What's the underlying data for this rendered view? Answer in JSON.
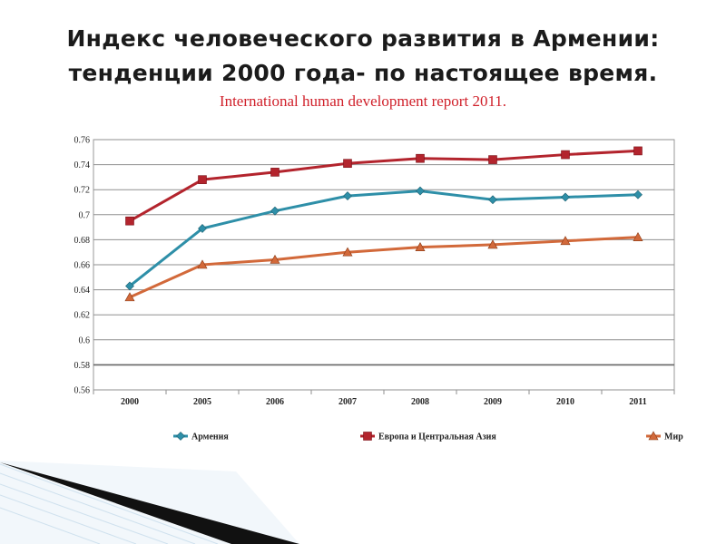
{
  "slide": {
    "title_line1": "Индекс человеческого развития в Армении:",
    "title_line2": "тенденции  2000 года- по настоящее время.",
    "subtitle": "International human development report 2011."
  },
  "chart_data": {
    "type": "line",
    "categories": [
      "2000",
      "2005",
      "2006",
      "2007",
      "2008",
      "2009",
      "2010",
      "2011"
    ],
    "ylim": [
      0.56,
      0.76
    ],
    "yticks": [
      "0.56",
      "0.58",
      "0.6",
      "0.62",
      "0.64",
      "0.66",
      "0.68",
      "0.7",
      "0.72",
      "0.74",
      "0.76"
    ],
    "grid": true,
    "legend_position": "bottom",
    "series": [
      {
        "name": "Армения",
        "color": "#2e8fa8",
        "marker": "diamond",
        "values": [
          0.643,
          0.689,
          0.703,
          0.715,
          0.719,
          0.712,
          0.714,
          0.716
        ]
      },
      {
        "name": "Европа и Центральная Азия",
        "color": "#b3242d",
        "marker": "square",
        "values": [
          0.695,
          0.728,
          0.734,
          0.741,
          0.745,
          0.744,
          0.748,
          0.751
        ]
      },
      {
        "name": "Мир",
        "color": "#d2693a",
        "marker": "triangle",
        "values": [
          0.634,
          0.66,
          0.664,
          0.67,
          0.674,
          0.676,
          0.679,
          0.682
        ]
      }
    ]
  }
}
